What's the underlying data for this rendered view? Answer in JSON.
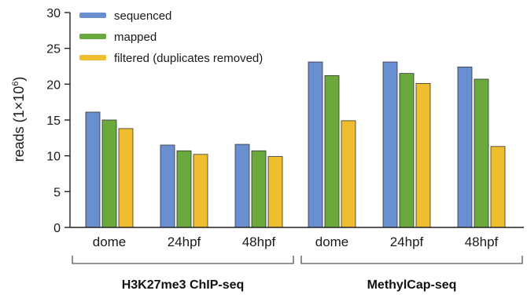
{
  "chart_data": {
    "type": "bar",
    "ylabel_main": "reads (1×10",
    "ylabel_sup": "6",
    "ylabel_close": ")",
    "ylim": [
      0,
      30
    ],
    "yticks": [
      0,
      5,
      10,
      15,
      20,
      25,
      30
    ],
    "grid": false,
    "legend_position": "top-left",
    "categories": [
      "dome",
      "24hpf",
      "48hpf",
      "dome",
      "24hpf",
      "48hpf"
    ],
    "groups": [
      {
        "label": "H3K27me3 ChIP-seq",
        "categories": [
          0,
          1,
          2
        ]
      },
      {
        "label": "MethylCap-seq",
        "categories": [
          3,
          4,
          5
        ]
      }
    ],
    "series": [
      {
        "name": "sequenced",
        "color": "#6a8fd1",
        "values": [
          16.1,
          11.5,
          11.6,
          23.1,
          23.1,
          22.4
        ]
      },
      {
        "name": "mapped",
        "color": "#6aaa3d",
        "values": [
          15.0,
          10.7,
          10.7,
          21.2,
          21.5,
          20.7
        ]
      },
      {
        "name": "filtered (duplicates removed)",
        "color": "#efbe2e",
        "values": [
          13.8,
          10.2,
          9.9,
          14.9,
          20.1,
          11.3
        ]
      }
    ]
  }
}
